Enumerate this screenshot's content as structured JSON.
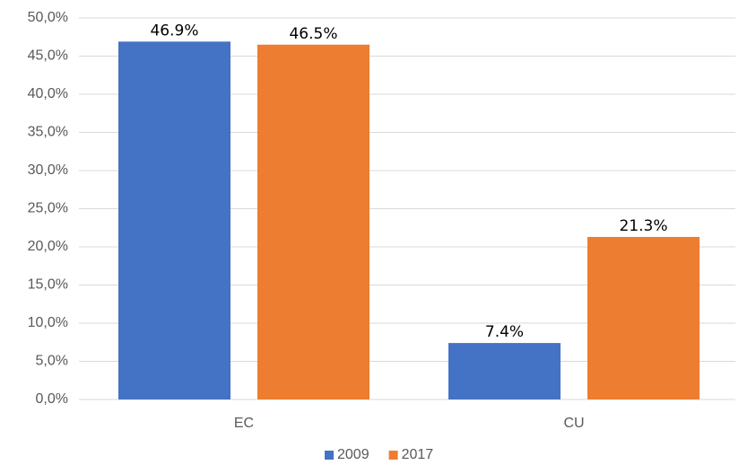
{
  "chart_data": {
    "type": "bar",
    "categories": [
      "EC",
      "CU"
    ],
    "series": [
      {
        "name": "2009",
        "color": "#4472c4",
        "values": [
          46.9,
          7.4
        ],
        "value_labels": [
          "46.9%",
          "7.4%"
        ]
      },
      {
        "name": "2017",
        "color": "#ed7d31",
        "values": [
          46.5,
          21.3
        ],
        "value_labels": [
          "46.5%",
          "21.3%"
        ]
      }
    ],
    "ylim": [
      0,
      50
    ],
    "yticks": [
      {
        "value": 0,
        "label": "0,0%"
      },
      {
        "value": 5,
        "label": "5,0%"
      },
      {
        "value": 10,
        "label": "10,0%"
      },
      {
        "value": 15,
        "label": "15,0%"
      },
      {
        "value": 20,
        "label": "20,0%"
      },
      {
        "value": 25,
        "label": "25,0%"
      },
      {
        "value": 30,
        "label": "30,0%"
      },
      {
        "value": 35,
        "label": "35,0%"
      },
      {
        "value": 40,
        "label": "40,0%"
      },
      {
        "value": 45,
        "label": "45,0%"
      },
      {
        "value": 50,
        "label": "50,0%"
      }
    ],
    "grid": true,
    "legend": "bottom"
  }
}
